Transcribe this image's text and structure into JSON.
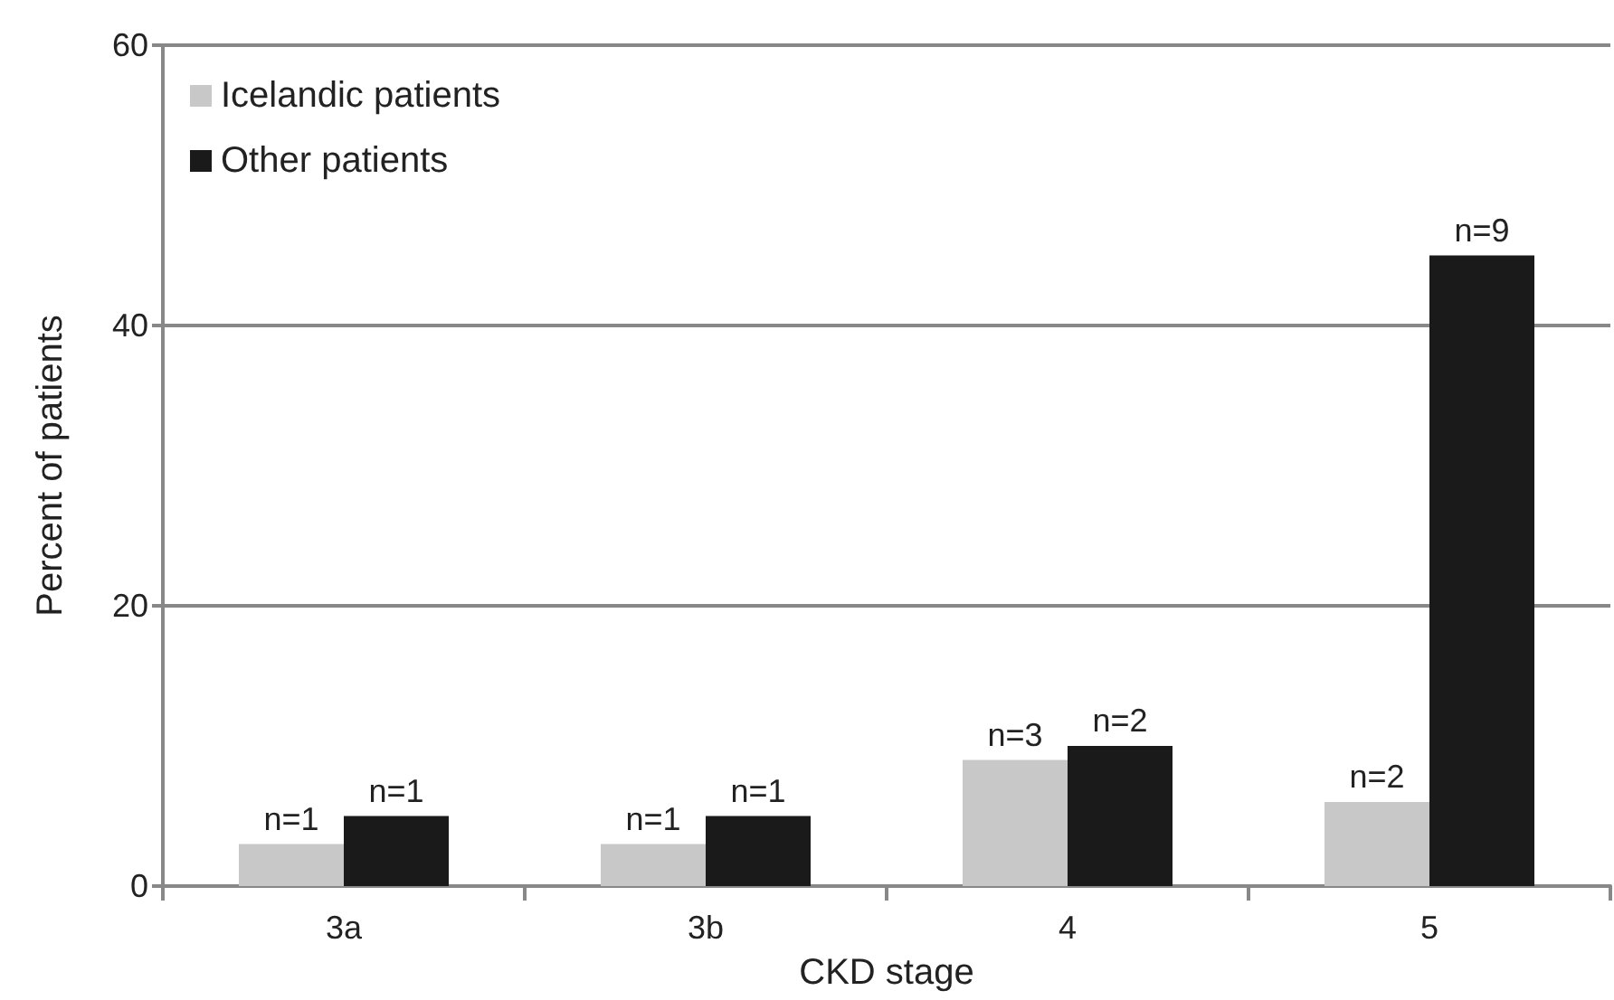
{
  "chart_data": {
    "type": "bar",
    "xlabel": "CKD stage",
    "ylabel": "Percent of patients",
    "categories": [
      "3a",
      "3b",
      "4",
      "5"
    ],
    "series": [
      {
        "name": "Icelandic patients",
        "color": "#c8c8c8",
        "values": [
          3,
          3,
          9,
          6
        ]
      },
      {
        "name": "Other patients",
        "color": "#1a1a1a",
        "values": [
          5,
          5,
          10,
          45
        ]
      }
    ],
    "annotations": [
      {
        "text": "n=1",
        "x": "3a",
        "y": 3
      },
      {
        "text": "n=1",
        "x": "3a",
        "y": 5
      },
      {
        "text": "n=1",
        "x": "3b",
        "y": 3
      },
      {
        "text": "n=1",
        "x": "3b",
        "y": 5
      },
      {
        "text": "n=3",
        "x": "4",
        "y": 9
      },
      {
        "text": "n=2",
        "x": "4",
        "y": 10
      },
      {
        "text": "n=2",
        "x": "5",
        "y": 6
      },
      {
        "text": "n=9",
        "x": "5",
        "y": 45
      }
    ],
    "ylim": [
      0,
      60
    ],
    "yticks": [
      0,
      20,
      40,
      60
    ],
    "grid": "y",
    "legend": "top left"
  }
}
